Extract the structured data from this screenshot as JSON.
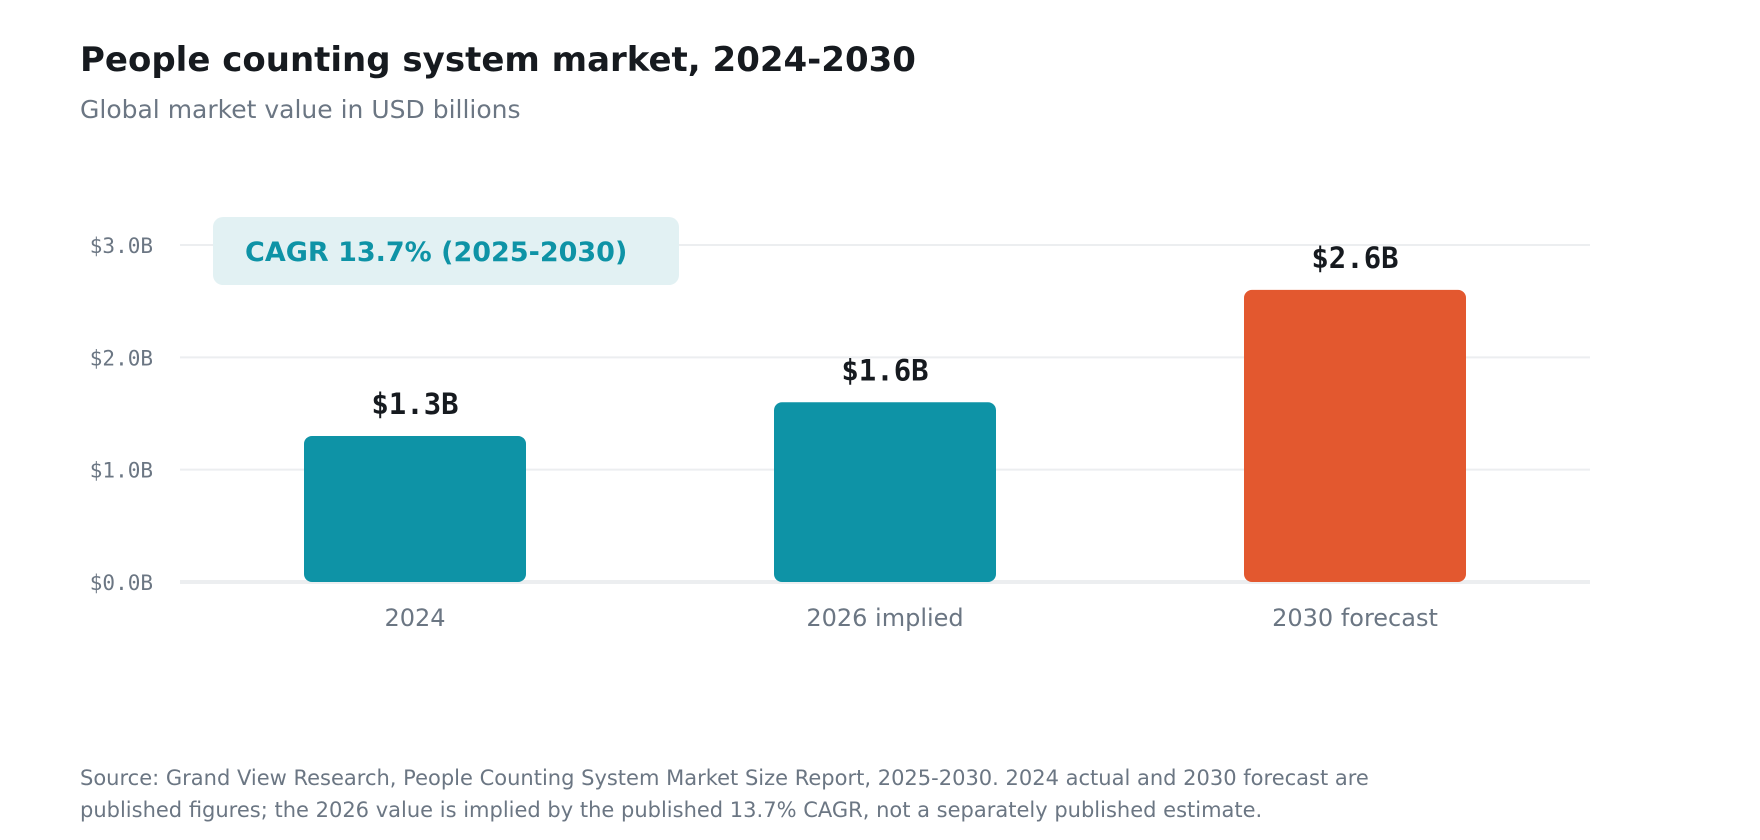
{
  "title": "People counting system market, 2024-2030",
  "subtitle": "Global market value in USD billions",
  "annotation": "CAGR 13.7% (2025-2030)",
  "source": {
    "line1": "Source: Grand View Research, People Counting System Market Size Report, 2025-2030. 2024 actual and 2030 forecast are",
    "line2": "published figures; the 2026 value is implied by the published 13.7% CAGR, not a separately published estimate."
  },
  "colors": {
    "primary": "#0e93a6",
    "highlight": "#e3582f",
    "annotation_bg": "#e2f1f3",
    "annotation_text": "#0e93a6",
    "grid": "#eceef0",
    "axis_text": "#6b7683",
    "label_text": "#161a1f"
  },
  "chart_data": {
    "type": "bar",
    "categories": [
      "2024",
      "2026 implied",
      "2030 forecast"
    ],
    "values": [
      1.3,
      1.6,
      2.6
    ],
    "value_labels": [
      "$1.3B",
      "$1.6B",
      "$2.6B"
    ],
    "highlight_index": 2,
    "title": "People counting system market, 2024-2030",
    "subtitle": "Global market value in USD billions",
    "xlabel": "",
    "ylabel": "",
    "ylim": [
      0,
      3
    ],
    "yticks": [
      0,
      1,
      2,
      3
    ],
    "ytick_labels": [
      "$0.0B",
      "$1.0B",
      "$2.0B",
      "$3.0B"
    ],
    "grid": true,
    "legend": "none"
  }
}
